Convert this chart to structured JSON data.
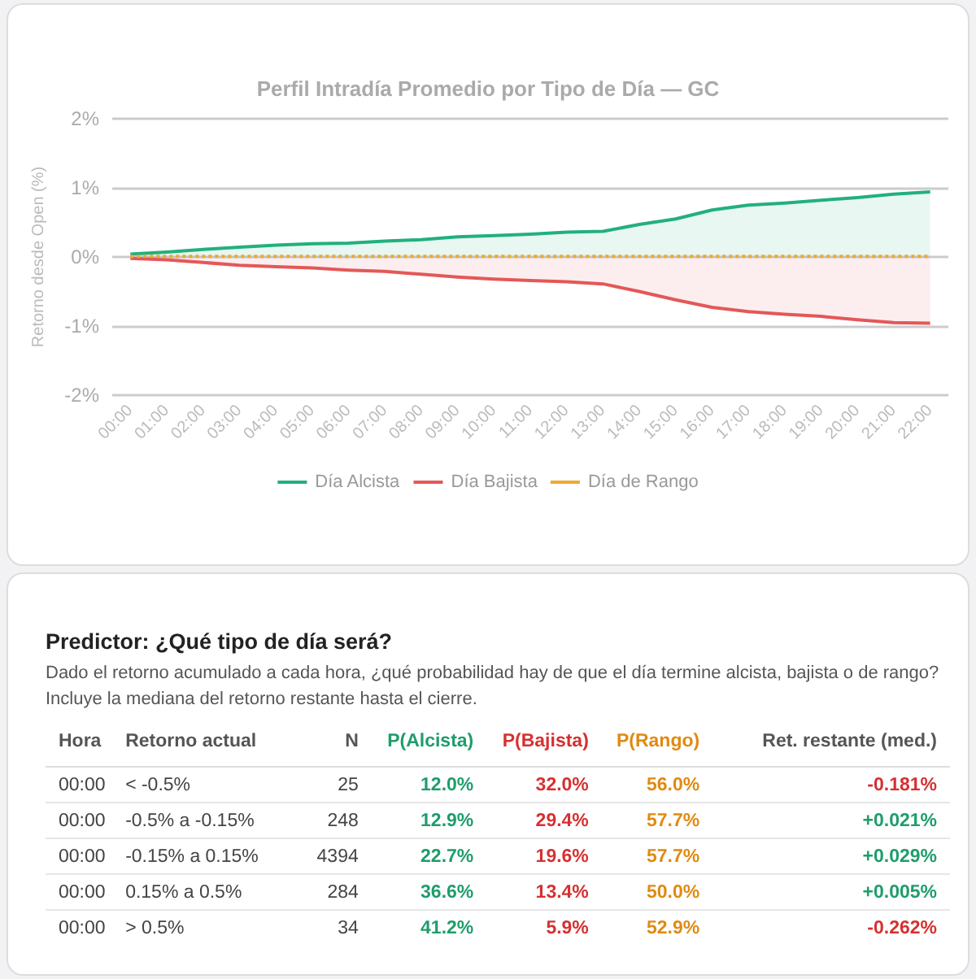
{
  "chart_data": [
    {
      "type": "line",
      "title": "Perfil Intradía Promedio por Tipo de Día — GC",
      "ylabel": "Retorno desde Open (%)",
      "categories": [
        "00:00",
        "01:00",
        "02:00",
        "03:00",
        "04:00",
        "05:00",
        "06:00",
        "07:00",
        "08:00",
        "09:00",
        "10:00",
        "11:00",
        "12:00",
        "13:00",
        "14:00",
        "15:00",
        "16:00",
        "17:00",
        "18:00",
        "19:00",
        "20:00",
        "21:00",
        "22:00"
      ],
      "series": [
        {
          "name": "Día Alcista",
          "type": "area",
          "color": "#22b07d",
          "line_style": "solid",
          "values": [
            0.04,
            0.07,
            0.11,
            0.14,
            0.17,
            0.19,
            0.2,
            0.23,
            0.25,
            0.29,
            0.31,
            0.33,
            0.36,
            0.37,
            0.47,
            0.55,
            0.68,
            0.75,
            0.78,
            0.82,
            0.86,
            0.91,
            0.94
          ]
        },
        {
          "name": "Día Bajista",
          "type": "area",
          "color": "#e45858",
          "line_style": "solid",
          "values": [
            -0.02,
            -0.04,
            -0.08,
            -0.12,
            -0.14,
            -0.16,
            -0.19,
            -0.21,
            -0.25,
            -0.29,
            -0.32,
            -0.34,
            -0.36,
            -0.39,
            -0.5,
            -0.62,
            -0.73,
            -0.79,
            -0.83,
            -0.86,
            -0.91,
            -0.95,
            -0.96
          ]
        },
        {
          "name": "Día de Rango",
          "type": "line",
          "color": "#f0a830",
          "line_style": "dotted",
          "values": [
            0.01,
            0.01,
            0.01,
            0.01,
            0.01,
            0.01,
            0.01,
            0.01,
            0.01,
            0.01,
            0.01,
            0.01,
            0.01,
            0.01,
            0.01,
            0.01,
            0.01,
            0.01,
            0.01,
            0.01,
            0.01,
            0.01,
            0.01
          ]
        }
      ],
      "ylim": [
        -2,
        2
      ],
      "yticks": [
        {
          "value": -2,
          "label": "-2%"
        },
        {
          "value": -1,
          "label": "-1%"
        },
        {
          "value": 0,
          "label": "0%"
        },
        {
          "value": 1,
          "label": "1%"
        },
        {
          "value": 2,
          "label": "2%"
        }
      ],
      "grid": "y",
      "legend": "bottom",
      "marker": "none"
    },
    {
      "type": "other",
      "title": "Predictor: ¿Qué tipo de día será?",
      "subtitle": "Dado el retorno acumulado a cada hora, ¿qué probabilidad hay de que el día termine alcista, bajista o de rango? Incluye la mediana del retorno restante hasta el cierre.",
      "annotations": [
        "Hora",
        "Retorno actual",
        "N",
        "P(Alcista)",
        "P(Bajista)",
        "P(Rango)",
        "Ret. restante (med.)",
        "00:00",
        "< -0.5%",
        "25",
        "12.0%",
        "32.0%",
        "56.0%",
        "-0.181%",
        "00:00",
        "-0.5% a -0.15%",
        "248",
        "12.9%",
        "29.4%",
        "57.7%",
        "+0.021%",
        "00:00",
        "-0.15% a 0.15%",
        "4394",
        "22.7%",
        "19.6%",
        "57.7%",
        "+0.029%",
        "00:00",
        "0.15% a 0.5%",
        "284",
        "36.6%",
        "13.4%",
        "50.0%",
        "+0.005%",
        "00:00",
        "> 0.5%",
        "34",
        "41.2%",
        "5.9%",
        "52.9%",
        "-0.262%"
      ]
    }
  ]
}
